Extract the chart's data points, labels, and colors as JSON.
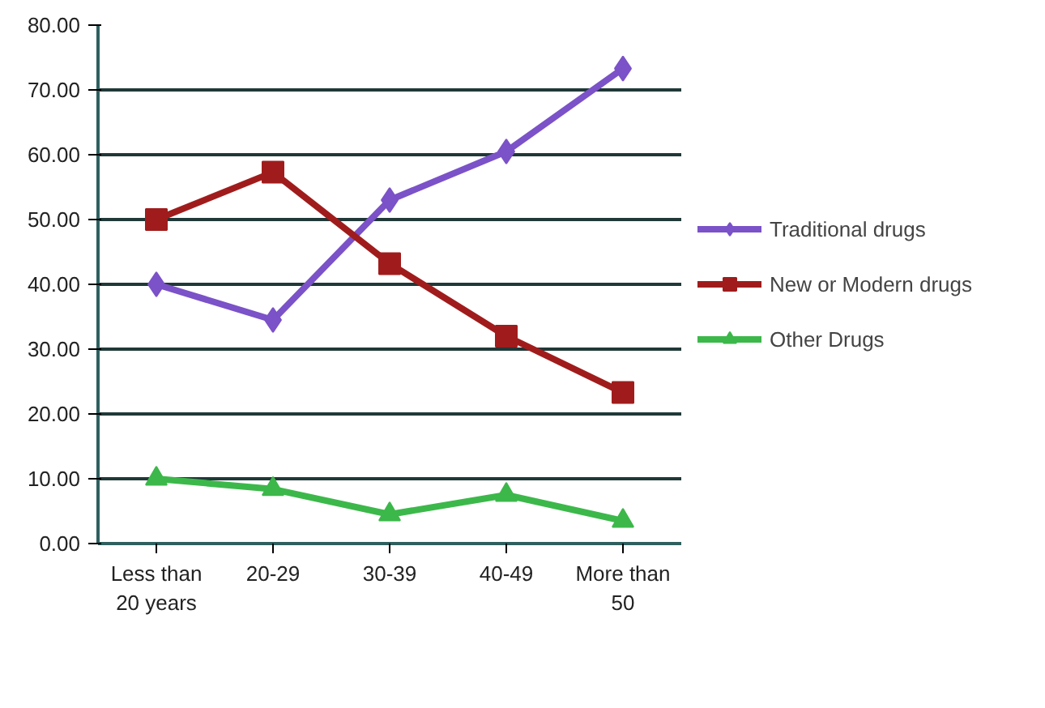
{
  "chart_data": {
    "type": "line",
    "categories": [
      "Less than\n20 years",
      "20-29",
      "30-39",
      "40-49",
      "More than\n50"
    ],
    "series": [
      {
        "name": "Traditional drugs",
        "color": "#7b52c8",
        "marker": "diamond",
        "values": [
          40.0,
          34.5,
          53.0,
          60.5,
          73.3
        ]
      },
      {
        "name": "New or Modern drugs",
        "color": "#a01c1c",
        "marker": "square",
        "values": [
          50.0,
          57.3,
          43.2,
          32.0,
          23.3
        ]
      },
      {
        "name": "Other Drugs",
        "color": "#3cb84a",
        "marker": "triangle",
        "values": [
          10.0,
          8.4,
          4.5,
          7.5,
          3.5
        ]
      }
    ],
    "ylim": [
      0,
      80
    ],
    "yticks": [
      {
        "value": 0,
        "label": "0.00"
      },
      {
        "value": 10,
        "label": "10.00"
      },
      {
        "value": 20,
        "label": "20.00"
      },
      {
        "value": 30,
        "label": "30.00"
      },
      {
        "value": 40,
        "label": "40.00"
      },
      {
        "value": 50,
        "label": "50.00"
      },
      {
        "value": 60,
        "label": "60.00"
      },
      {
        "value": 70,
        "label": "70.00"
      },
      {
        "value": 80,
        "label": "80.00"
      }
    ],
    "grid": "y",
    "legend": "right",
    "line_style": "solid"
  }
}
